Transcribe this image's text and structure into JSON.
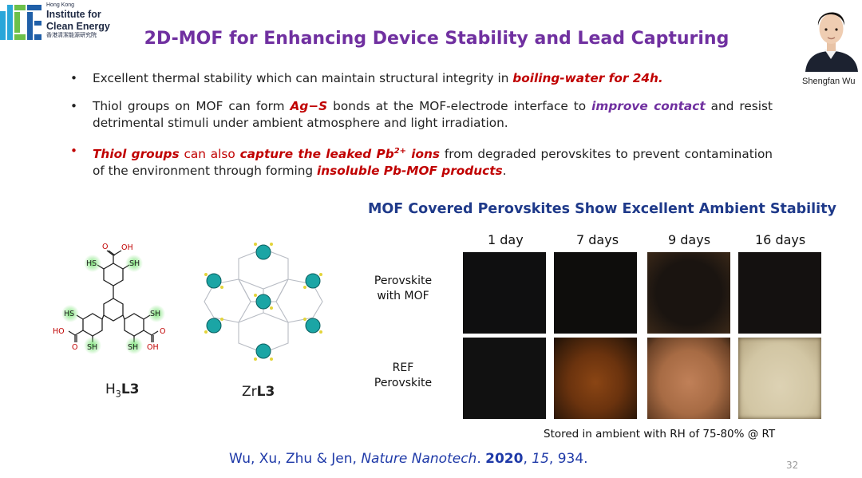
{
  "logo": {
    "line1": "Hong Kong",
    "line2": "Institute for",
    "line3": "Clean Energy",
    "line4": "香港清潔能源研究院",
    "colors": [
      "#2aa6d9",
      "#6cc04a",
      "#1f5fa8"
    ]
  },
  "title": "2D-MOF for Enhancing Device Stability and Lead Capturing",
  "portrait": {
    "name": "Shengfan Wu"
  },
  "bullets": [
    {
      "parts": [
        {
          "text": "Excellent thermal stability which can maintain structural integrity in ",
          "style": "plain"
        },
        {
          "text": "boiling-water for 24h",
          "style": "red"
        },
        {
          "text": ".",
          "style": "plain"
        }
      ]
    },
    {
      "parts": [
        {
          "text": "Thiol groups on MOF can form ",
          "style": "plain"
        },
        {
          "text": "Ag−S",
          "style": "red"
        },
        {
          "text": " bonds at the MOF-electrode interface to ",
          "style": "plain"
        },
        {
          "text": "improve contact",
          "style": "purple"
        },
        {
          "text": " and resist detrimental stimuli under ambient atmosphere and light irradiation.",
          "style": "plain"
        }
      ]
    },
    {
      "parts": [
        {
          "text": "Thiol groups",
          "style": "red"
        },
        {
          "text": " can also ",
          "style": "redplain"
        },
        {
          "text": "capture the leaked Pb",
          "style": "red"
        },
        {
          "text": "2+",
          "style": "redsup"
        },
        {
          "text": " ions",
          "style": "red"
        },
        {
          "text": " from degraded perovskites to prevent contamination of the environment through forming ",
          "style": "plain"
        },
        {
          "text": "insoluble Pb-MOF products",
          "style": "red"
        },
        {
          "text": ".",
          "style": "plain"
        }
      ]
    }
  ],
  "molecule": {
    "ligand_label_prefix": "H",
    "ligand_label_sub": "3",
    "ligand_label_bold": "L3",
    "mof_label_prefix": "Zr",
    "mof_label_bold": "L3",
    "atoms": {
      "oh": "OH",
      "ho": "HO",
      "o": "O",
      "hs": "HS",
      "sh": "SH"
    }
  },
  "panel": {
    "title": "MOF Covered Perovskites Show Excellent Ambient Stability",
    "days": [
      "1 day",
      "7 days",
      "9 days",
      "16 days"
    ],
    "rows": [
      {
        "label_line1": "Perovskite",
        "label_line2": "with MOF"
      },
      {
        "label_line1": "REF",
        "label_line2": "Perovskite"
      }
    ],
    "note": "Stored in ambient with RH of 75-80% @ RT"
  },
  "citation": {
    "authors": "Wu, Xu, Zhu & Jen, ",
    "journal": "Nature Nanotech",
    "dot": ". ",
    "year": "2020",
    "comma1": ", ",
    "volume": "15",
    "pages": ", 934."
  },
  "page_number": "32"
}
